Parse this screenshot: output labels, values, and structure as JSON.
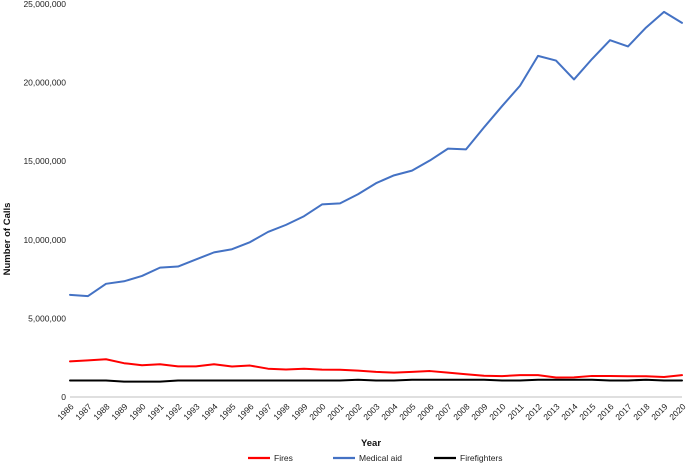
{
  "chart_data": {
    "type": "line",
    "title": "",
    "xlabel": "Year",
    "ylabel": "Number of Calls",
    "ylim": [
      0,
      25000000
    ],
    "yticks": [
      0,
      5000000,
      10000000,
      15000000,
      20000000,
      25000000
    ],
    "ytick_labels": [
      "0",
      "5,000,000",
      "10,000,000",
      "15,000,000",
      "20,000,000",
      "25,000,000"
    ],
    "grid": false,
    "legend_position": "bottom",
    "x": [
      "1986",
      "1987",
      "1988",
      "1989",
      "1990",
      "1991",
      "1992",
      "1993",
      "1994",
      "1995",
      "1996",
      "1997",
      "1998",
      "1999",
      "2000",
      "2001",
      "2002",
      "2003",
      "2004",
      "2005",
      "2006",
      "2007",
      "2008",
      "2009",
      "2010",
      "2011",
      "2012",
      "2013",
      "2014",
      "2015",
      "2016",
      "2017",
      "2018",
      "2019",
      "2020"
    ],
    "series": [
      {
        "name": "Fires",
        "color": "#ff0000",
        "values": [
          2270000,
          2330000,
          2400000,
          2150000,
          2020000,
          2080000,
          1950000,
          1950000,
          2080000,
          1940000,
          2000000,
          1800000,
          1750000,
          1800000,
          1740000,
          1730000,
          1680000,
          1600000,
          1550000,
          1600000,
          1650000,
          1550000,
          1450000,
          1350000,
          1330000,
          1390000,
          1390000,
          1240000,
          1250000,
          1340000,
          1340000,
          1320000,
          1320000,
          1270000,
          1390000
        ]
      },
      {
        "name": "Medical aid",
        "color": "#4472c4",
        "values": [
          6500000,
          6420000,
          7200000,
          7360000,
          7700000,
          8230000,
          8300000,
          8750000,
          9200000,
          9400000,
          9850000,
          10500000,
          10950000,
          11500000,
          12250000,
          12320000,
          12900000,
          13600000,
          14100000,
          14400000,
          15050000,
          15800000,
          15750000,
          17150000,
          18500000,
          19800000,
          21700000,
          21400000,
          20200000,
          21500000,
          22700000,
          22300000,
          23500000,
          24500000,
          23800000
        ]
      },
      {
        "name": "Firefighters",
        "color": "#000000",
        "values": [
          1050000,
          1050000,
          1050000,
          980000,
          980000,
          980000,
          1050000,
          1050000,
          1050000,
          1050000,
          1050000,
          1050000,
          1050000,
          1050000,
          1050000,
          1050000,
          1100000,
          1050000,
          1050000,
          1100000,
          1100000,
          1100000,
          1100000,
          1100000,
          1050000,
          1050000,
          1100000,
          1100000,
          1100000,
          1100000,
          1050000,
          1050000,
          1100000,
          1050000,
          1050000
        ]
      }
    ]
  }
}
